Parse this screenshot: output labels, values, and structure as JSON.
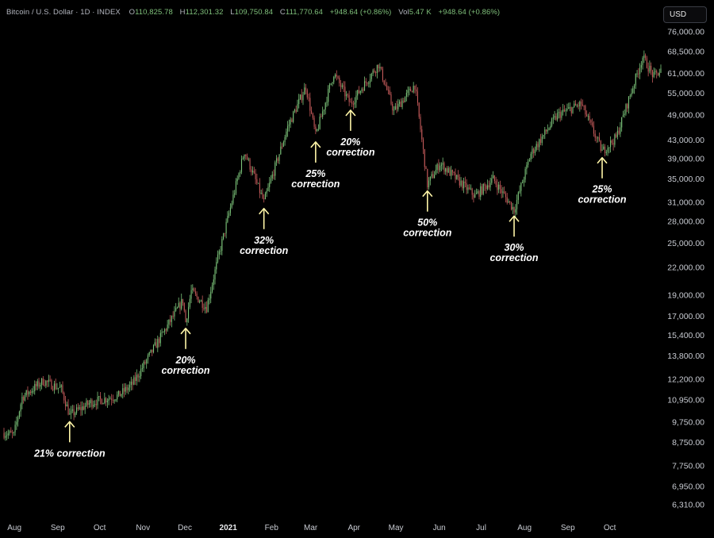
{
  "header": {
    "title": "Bitcoin / U.S. Dollar · 1D · INDEX",
    "o_label": "O",
    "o_value": "110,825.78",
    "h_label": "H",
    "h_value": "112,301.32",
    "l_label": "L",
    "l_value": "109,750.84",
    "c_label": "C",
    "c_value": "111,770.64",
    "change": "+948.64 (+0.86%)",
    "vol_label": "Vol",
    "vol_value": "5.47 K",
    "vol_change": "+948.64 (+0.86%)"
  },
  "currency_button": {
    "label": "USD"
  },
  "colors": {
    "up": "#7cc47a",
    "down": "#c45a5a",
    "annotation_arrow": "#fff6a8",
    "background": "#000000"
  },
  "chart_data": {
    "type": "candlestick",
    "scale": "log",
    "ylim": [
      6000,
      80000
    ],
    "y_ticks": [
      "76,000.00",
      "68,500.00",
      "61,000.00",
      "55,000.00",
      "49,000.00",
      "43,000.00",
      "39,000.00",
      "35,000.00",
      "31,000.00",
      "28,000.00",
      "25,000.00",
      "22,000.00",
      "19,000.00",
      "17,000.00",
      "15,400.00",
      "13,800.00",
      "12,200.00",
      "10,950.00",
      "9,750.00",
      "8,750.00",
      "7,750.00",
      "6,950.00",
      "6,310.00"
    ],
    "x_ticks": [
      {
        "label": "Aug",
        "bold": false
      },
      {
        "label": "Sep",
        "bold": false
      },
      {
        "label": "Oct",
        "bold": false
      },
      {
        "label": "Nov",
        "bold": false
      },
      {
        "label": "Dec",
        "bold": false
      },
      {
        "label": "2021",
        "bold": true
      },
      {
        "label": "Feb",
        "bold": false
      },
      {
        "label": "Mar",
        "bold": false
      },
      {
        "label": "Apr",
        "bold": false
      },
      {
        "label": "May",
        "bold": false
      },
      {
        "label": "Jun",
        "bold": false
      },
      {
        "label": "Jul",
        "bold": false
      },
      {
        "label": "Aug",
        "bold": false
      },
      {
        "label": "Sep",
        "bold": false
      },
      {
        "label": "Oct",
        "bold": false
      }
    ],
    "price_path": [
      [
        "2020-07-20",
        9200
      ],
      [
        "2020-07-27",
        9100
      ],
      [
        "2020-08-02",
        11100
      ],
      [
        "2020-08-17",
        12100
      ],
      [
        "2020-08-30",
        11600
      ],
      [
        "2020-09-05",
        10100
      ],
      [
        "2020-09-20",
        10800
      ],
      [
        "2020-10-10",
        11200
      ],
      [
        "2020-10-20",
        11900
      ],
      [
        "2020-11-05",
        14500
      ],
      [
        "2020-11-25",
        18500
      ],
      [
        "2020-11-27",
        16500
      ],
      [
        "2020-12-01",
        19400
      ],
      [
        "2020-12-12",
        17800
      ],
      [
        "2020-12-20",
        23000
      ],
      [
        "2021-01-08",
        40500
      ],
      [
        "2021-01-22",
        31000
      ],
      [
        "2021-02-08",
        46000
      ],
      [
        "2021-02-21",
        57000
      ],
      [
        "2021-02-28",
        44000
      ],
      [
        "2021-03-13",
        61000
      ],
      [
        "2021-03-25",
        52000
      ],
      [
        "2021-04-14",
        64000
      ],
      [
        "2021-04-25",
        50000
      ],
      [
        "2021-05-10",
        57500
      ],
      [
        "2021-05-19",
        34000
      ],
      [
        "2021-05-28",
        38000
      ],
      [
        "2021-06-22",
        32000
      ],
      [
        "2021-07-05",
        35000
      ],
      [
        "2021-07-20",
        29800
      ],
      [
        "2021-08-01",
        40000
      ],
      [
        "2021-08-20",
        49000
      ],
      [
        "2021-09-06",
        52000
      ],
      [
        "2021-09-21",
        40500
      ],
      [
        "2021-10-01",
        43500
      ],
      [
        "2021-10-20",
        66500
      ],
      [
        "2021-10-28",
        60000
      ],
      [
        "2021-11-02",
        62000
      ]
    ],
    "annotations": [
      {
        "text": "21% correction",
        "lines": [
          "21% correction"
        ],
        "date": "2020-09-05",
        "price": 10100
      },
      {
        "text": "20% correction",
        "lines": [
          "20%",
          "correction"
        ],
        "date": "2020-11-27",
        "price": 16500
      },
      {
        "text": "32% correction",
        "lines": [
          "32%",
          "correction"
        ],
        "date": "2021-01-22",
        "price": 31000
      },
      {
        "text": "25% correction",
        "lines": [
          "25%",
          "correction"
        ],
        "date": "2021-02-28",
        "price": 44000
      },
      {
        "text": "20% correction",
        "lines": [
          "20%",
          "correction"
        ],
        "date": "2021-03-25",
        "price": 52000
      },
      {
        "text": "50% correction",
        "lines": [
          "50%",
          "correction"
        ],
        "date": "2021-05-19",
        "price": 34000
      },
      {
        "text": "30% correction",
        "lines": [
          "30%",
          "correction"
        ],
        "date": "2021-07-20",
        "price": 29800
      },
      {
        "text": "25% correction",
        "lines": [
          "25%",
          "correction"
        ],
        "date": "2021-09-21",
        "price": 40500
      }
    ]
  }
}
